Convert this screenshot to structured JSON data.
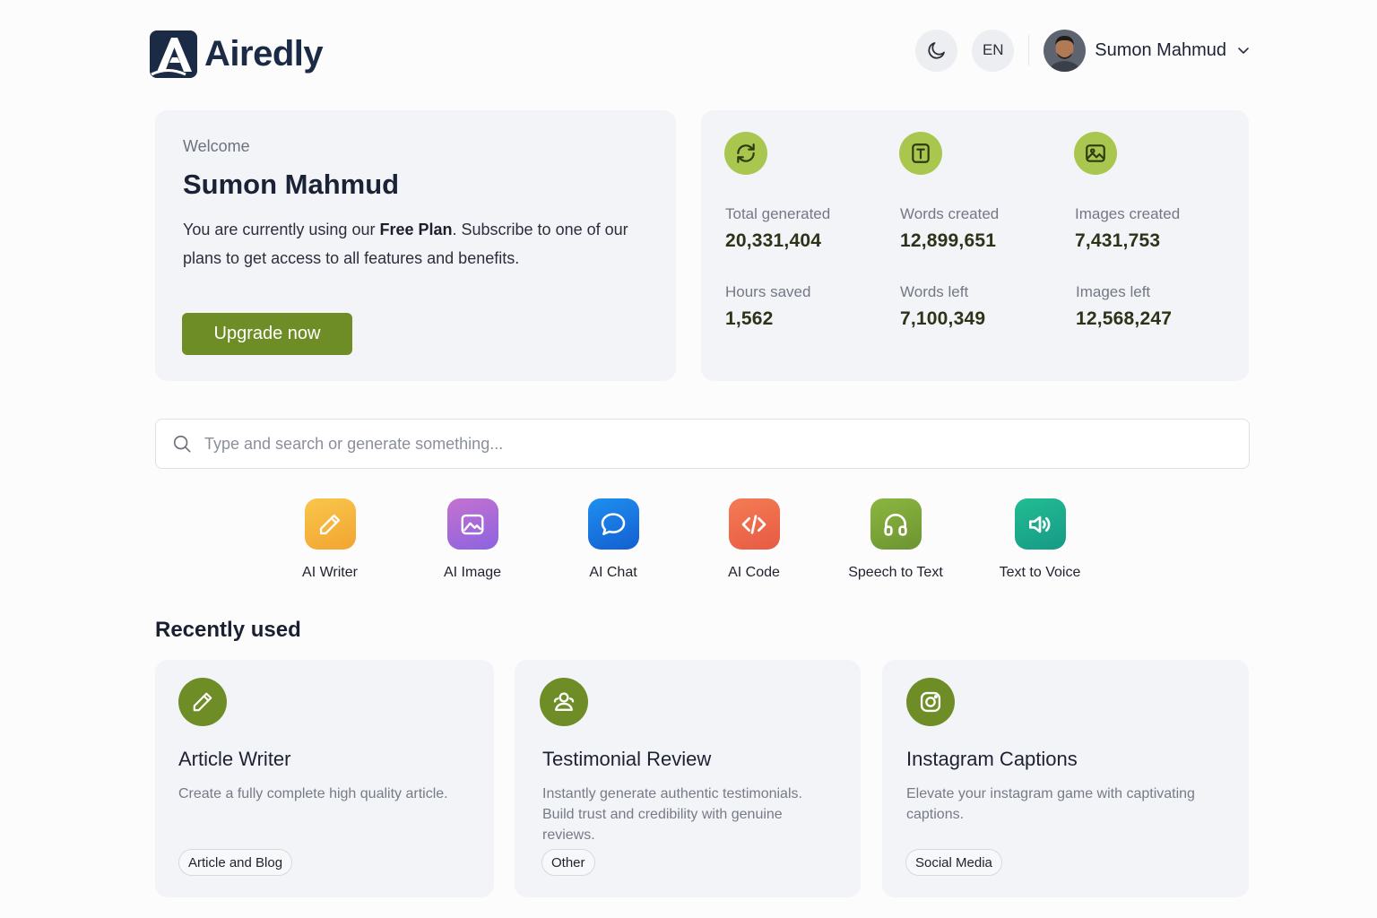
{
  "brand": {
    "name": "Airedly",
    "color": "#1c2b45"
  },
  "header": {
    "language": "EN",
    "user_name": "Sumon Mahmud"
  },
  "welcome": {
    "label": "Welcome",
    "name": "Sumon Mahmud",
    "text_before": "You are currently using our ",
    "plan_name": "Free Plan",
    "text_after": ". Subscribe to  one of our plans to get access to all features and benefits.",
    "upgrade_label": "Upgrade now",
    "accent": "#6f8d26"
  },
  "stats": {
    "icon_color": "#a9c64e",
    "items": [
      {
        "label": "Total generated",
        "value": "20,331,404",
        "icon": "refresh-icon"
      },
      {
        "label": "Words created",
        "value": "12,899,651",
        "icon": "text-icon"
      },
      {
        "label": "Images created",
        "value": "7,431,753",
        "icon": "image-icon"
      },
      {
        "label": "Hours saved",
        "value": "1,562"
      },
      {
        "label": "Words left",
        "value": "7,100,349"
      },
      {
        "label": "Images left",
        "value": "12,568,247"
      }
    ]
  },
  "search": {
    "placeholder": "Type and search or generate something..."
  },
  "tools": [
    {
      "label": "AI Writer",
      "icon": "pencil-icon",
      "color": "#f5b436"
    },
    {
      "label": "AI Image",
      "icon": "image-icon",
      "color": "#a66ad8"
    },
    {
      "label": "AI Chat",
      "icon": "chat-bubble-icon",
      "color": "#1a73e0"
    },
    {
      "label": "AI Code",
      "icon": "code-icon",
      "color": "#ef6b4a"
    },
    {
      "label": "Speech to Text",
      "icon": "headphones-icon",
      "color": "#7aa33b"
    },
    {
      "label": "Text to Voice",
      "icon": "speaker-icon",
      "color": "#1fae8e"
    }
  ],
  "recent": {
    "title": "Recently used",
    "items": [
      {
        "title": "Article Writer",
        "desc": "Create a fully complete high quality article.",
        "tag": "Article and Blog",
        "icon": "pencil-icon"
      },
      {
        "title": "Testimonial Review",
        "desc": "Instantly generate authentic testimonials. Build trust and credibility with genuine reviews.",
        "tag": "Other",
        "icon": "users-icon"
      },
      {
        "title": "Instagram Captions",
        "desc": "Elevate your instagram game with captivating captions.",
        "tag": "Social Media",
        "icon": "instagram-icon"
      }
    ]
  }
}
